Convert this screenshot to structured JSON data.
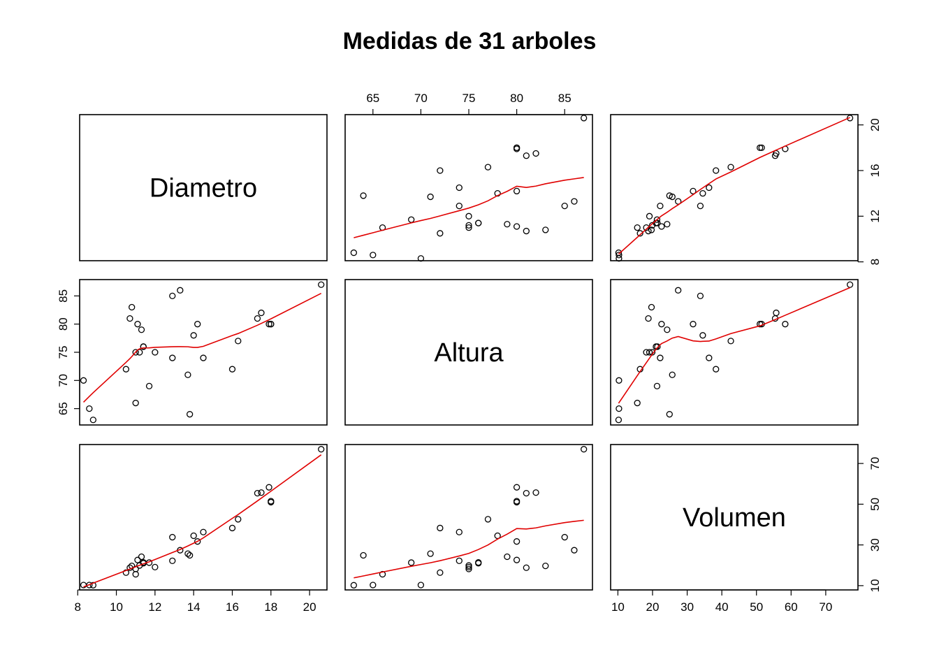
{
  "chart_data": {
    "type": "scatter",
    "title": "Medidas de 31 arboles",
    "variables": [
      {
        "name": "Diametro",
        "range": [
          8.1,
          20.9
        ],
        "ticks": [
          8,
          10,
          12,
          14,
          16,
          18,
          20
        ],
        "tick_labels": [
          "8",
          "10",
          "12",
          "14",
          "16",
          "18",
          "20"
        ],
        "axis_sides": [
          "bottom",
          "left"
        ]
      },
      {
        "name": "Altura",
        "range": [
          62.1,
          87.9
        ],
        "ticks": [
          65,
          70,
          75,
          80,
          85
        ],
        "tick_labels": [
          "65",
          "70",
          "75",
          "80",
          "85"
        ],
        "axis_sides": [
          "top",
          "left"
        ]
      },
      {
        "name": "Volumen",
        "range": [
          7.9,
          79.3
        ],
        "x_ticks": [
          10,
          20,
          30,
          40,
          50,
          60,
          70
        ],
        "x_tick_labels": [
          "10",
          "20",
          "30",
          "40",
          "50",
          "60",
          "70"
        ],
        "y_ticks": [
          10,
          30,
          50,
          70
        ],
        "y_tick_labels": [
          "10",
          "30",
          "50",
          "70"
        ],
        "right_ticks_Diametro": [
          8,
          12,
          16,
          20
        ],
        "right_tick_labels_Diametro": [
          "8",
          "12",
          "16",
          "20"
        ],
        "axis_sides": [
          "bottom",
          "right"
        ]
      }
    ],
    "observations": {
      "Diametro": [
        8.3,
        8.6,
        8.8,
        10.5,
        10.7,
        10.8,
        11.0,
        11.0,
        11.1,
        11.2,
        11.3,
        11.4,
        11.4,
        11.7,
        12.0,
        12.9,
        12.9,
        13.3,
        13.7,
        13.8,
        14.0,
        14.2,
        14.5,
        16.0,
        16.3,
        17.3,
        17.5,
        17.9,
        18.0,
        18.0,
        20.6
      ],
      "Altura": [
        70,
        65,
        63,
        72,
        81,
        83,
        66,
        75,
        80,
        75,
        79,
        76,
        76,
        69,
        75,
        74,
        85,
        86,
        71,
        64,
        78,
        80,
        74,
        72,
        77,
        81,
        82,
        80,
        80,
        80,
        87
      ],
      "Volumen": [
        10.3,
        10.3,
        10.2,
        16.4,
        18.8,
        19.7,
        15.6,
        18.2,
        22.6,
        19.9,
        24.2,
        21.0,
        21.4,
        21.3,
        19.1,
        22.2,
        33.8,
        27.4,
        25.7,
        24.9,
        34.5,
        31.7,
        36.3,
        38.3,
        42.6,
        55.4,
        55.7,
        58.3,
        51.5,
        51.0,
        77.0
      ]
    },
    "smoother": {
      "type": "lowess",
      "color": "#e00000"
    },
    "point_style": "open-circle",
    "grid": false,
    "legend": "none"
  }
}
